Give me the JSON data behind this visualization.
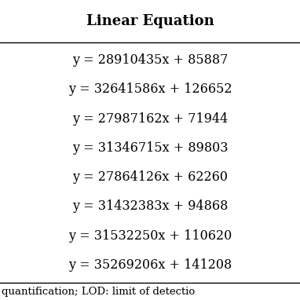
{
  "title": "Linear Equation",
  "equations": [
    "y = 28910435x + 85887",
    "y = 32641586x + 126652",
    "y = 27987162x + 71944",
    "y = 31346715x + 89803",
    "y = 27864126x + 62260",
    "y = 31432383x + 94868",
    "y = 31532250x + 110620",
    "y = 35269206x + 141208"
  ],
  "footer_text": "quantification; LOD: limit of detectio",
  "bg_color": "#ffffff",
  "text_color": "#000000",
  "title_fontsize": 13,
  "eq_fontsize": 11.5,
  "footer_fontsize": 9.5,
  "fig_width": 3.82,
  "fig_height": 3.82,
  "dpi": 100
}
